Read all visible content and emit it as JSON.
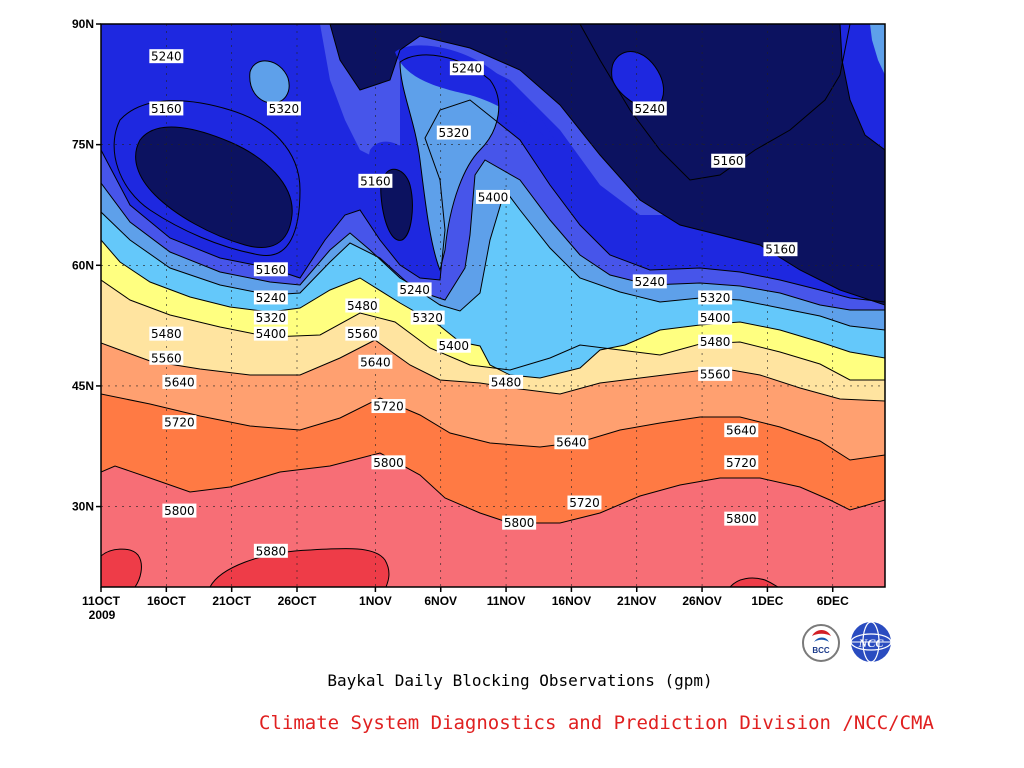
{
  "chart_data": {
    "type": "contour",
    "title": "Baykal Daily Blocking Observations (gpm)",
    "x_ticks": [
      "11OCT",
      "16OCT",
      "21OCT",
      "26OCT",
      "1NOV",
      "6NOV",
      "11NOV",
      "16NOV",
      "21NOV",
      "26NOV",
      "1DEC",
      "6DEC"
    ],
    "x_start_year": "2009",
    "x_range": [
      "2009-10-11",
      "2009-12-10"
    ],
    "y_ticks": [
      "90N",
      "75N",
      "60N",
      "45N",
      "30N"
    ],
    "y_range": [
      20,
      90
    ],
    "contour_levels": [
      5160,
      5240,
      5320,
      5400,
      5480,
      5560,
      5640,
      5720,
      5800,
      5880
    ],
    "level_colors": [
      "#0c1260",
      "#1e28e0",
      "#4755ea",
      "#5ea0ea",
      "#64c8fa",
      "#ffff80",
      "#ffe4a0",
      "#ffa070",
      "#ff7a44",
      "#f76e76",
      "#ee3c48"
    ],
    "grid": true,
    "contour_labels": [
      {
        "value": "5240",
        "date": "2009-10-16",
        "lat": 86
      },
      {
        "value": "5160",
        "date": "2009-10-16",
        "lat": 79.5
      },
      {
        "value": "5320",
        "date": "2009-10-25",
        "lat": 79.5
      },
      {
        "value": "5160",
        "date": "2009-11-01",
        "lat": 70.5
      },
      {
        "value": "5240",
        "date": "2009-11-08",
        "lat": 84.5
      },
      {
        "value": "5320",
        "date": "2009-11-07",
        "lat": 76.5
      },
      {
        "value": "5400",
        "date": "2009-11-10",
        "lat": 68.5
      },
      {
        "value": "5240",
        "date": "2009-11-22",
        "lat": 79.5
      },
      {
        "value": "5160",
        "date": "2009-11-28",
        "lat": 73
      },
      {
        "value": "5160",
        "date": "2009-12-02",
        "lat": 62
      },
      {
        "value": "5160",
        "date": "2009-10-24",
        "lat": 59.5
      },
      {
        "value": "5240",
        "date": "2009-10-24",
        "lat": 56
      },
      {
        "value": "5320",
        "date": "2009-10-24",
        "lat": 53.5
      },
      {
        "value": "5400",
        "date": "2009-10-24",
        "lat": 51.5
      },
      {
        "value": "5480",
        "date": "2009-10-16",
        "lat": 51.5
      },
      {
        "value": "5560",
        "date": "2009-10-16",
        "lat": 48.5
      },
      {
        "value": "5640",
        "date": "2009-10-17",
        "lat": 45.5
      },
      {
        "value": "5720",
        "date": "2009-10-17",
        "lat": 40.5
      },
      {
        "value": "5800",
        "date": "2009-10-17",
        "lat": 29.5
      },
      {
        "value": "5880",
        "date": "2009-10-24",
        "lat": 24.5
      },
      {
        "value": "5480",
        "date": "2009-10-31",
        "lat": 55
      },
      {
        "value": "5560",
        "date": "2009-10-31",
        "lat": 51.5
      },
      {
        "value": "5640",
        "date": "2009-11-01",
        "lat": 48
      },
      {
        "value": "5720",
        "date": "2009-11-02",
        "lat": 42.5
      },
      {
        "value": "5800",
        "date": "2009-11-02",
        "lat": 35.5
      },
      {
        "value": "5240",
        "date": "2009-11-04",
        "lat": 57
      },
      {
        "value": "5320",
        "date": "2009-11-05",
        "lat": 53.5
      },
      {
        "value": "5400",
        "date": "2009-11-07",
        "lat": 50
      },
      {
        "value": "5480",
        "date": "2009-11-11",
        "lat": 45.5
      },
      {
        "value": "5640",
        "date": "2009-11-16",
        "lat": 38
      },
      {
        "value": "5720",
        "date": "2009-11-17",
        "lat": 30.5
      },
      {
        "value": "5800",
        "date": "2009-11-12",
        "lat": 28
      },
      {
        "value": "5240",
        "date": "2009-11-22",
        "lat": 58
      },
      {
        "value": "5320",
        "date": "2009-11-27",
        "lat": 56
      },
      {
        "value": "5400",
        "date": "2009-11-27",
        "lat": 53.5
      },
      {
        "value": "5480",
        "date": "2009-11-27",
        "lat": 50.5
      },
      {
        "value": "5560",
        "date": "2009-11-27",
        "lat": 46.5
      },
      {
        "value": "5640",
        "date": "2009-11-29",
        "lat": 39.5
      },
      {
        "value": "5720",
        "date": "2009-11-29",
        "lat": 35.5
      },
      {
        "value": "5800",
        "date": "2009-11-29",
        "lat": 28.5
      }
    ]
  },
  "caption": "Baykal Daily Blocking Observations (gpm)",
  "footer": "Climate System Diagnostics and Prediction Division /NCC/CMA",
  "logos": {
    "bcc": "BCC",
    "ncc": "NCC"
  }
}
